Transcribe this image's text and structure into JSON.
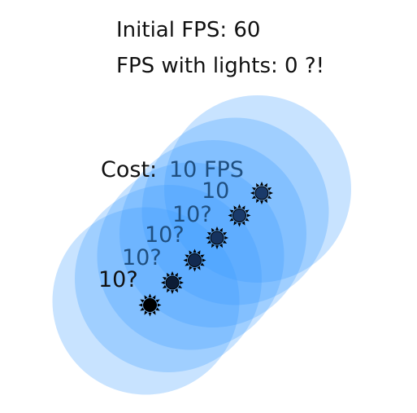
{
  "header": {
    "initial_fps": "Initial FPS: 60",
    "fps_with_lights": "FPS with lights: 0 ?!"
  },
  "diagram": {
    "light_color": "#3a9bff",
    "light_opacity": 0.28,
    "cost_label": "Cost:",
    "lights": [
      {
        "label": "10 FPS",
        "color": "#1a3a6a"
      },
      {
        "label": "10",
        "color": "#1a3a6a"
      },
      {
        "label": "10?",
        "color": "#16335f"
      },
      {
        "label": "10?",
        "color": "#122a50"
      },
      {
        "label": "10?",
        "color": "#0c1c36"
      },
      {
        "label": "10?",
        "color": "#000000"
      }
    ]
  }
}
